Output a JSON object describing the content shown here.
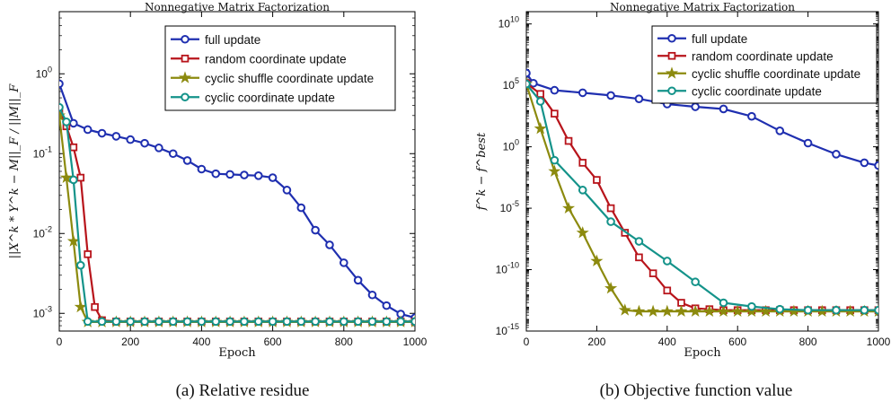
{
  "chart_data": [
    {
      "type": "line",
      "title": "Nonnegative Matrix Factorization",
      "xlabel": "Epoch",
      "ylabel": "||X^k * Y^k − M||_F / ||M||_F",
      "caption": "(a) Relative residue",
      "xlim": [
        0,
        1000
      ],
      "ylim": [
        0.0006,
        6
      ],
      "yscale": "log",
      "xticks": [
        "0",
        "200",
        "400",
        "600",
        "800",
        "1000"
      ],
      "yticks": [
        {
          "value": 1,
          "label": "10^0"
        },
        {
          "value": 0.1,
          "label": "10^-1"
        },
        {
          "value": 0.01,
          "label": "10^-2"
        },
        {
          "value": 0.001,
          "label": "10^-3"
        }
      ],
      "legend_position": "top-right",
      "series": [
        {
          "name": "full update",
          "color": "#1f2fb0",
          "marker": "circle",
          "x": [
            0,
            40,
            80,
            120,
            160,
            200,
            240,
            280,
            320,
            360,
            400,
            440,
            480,
            520,
            560,
            600,
            640,
            680,
            720,
            760,
            800,
            840,
            880,
            920,
            960,
            1000
          ],
          "y": [
            0.75,
            0.24,
            0.2,
            0.18,
            0.165,
            0.15,
            0.135,
            0.118,
            0.1,
            0.082,
            0.064,
            0.056,
            0.055,
            0.054,
            0.053,
            0.05,
            0.035,
            0.021,
            0.011,
            0.0072,
            0.0043,
            0.0026,
            0.0017,
            0.00125,
            0.00098,
            0.00088
          ]
        },
        {
          "name": "random coordinate update",
          "color": "#b8141b",
          "marker": "square",
          "x": [
            0,
            20,
            40,
            60,
            80,
            100,
            120,
            160,
            200,
            240,
            280,
            320,
            360,
            400,
            440,
            480,
            520,
            560,
            600,
            640,
            680,
            720,
            760,
            800,
            840,
            880,
            920,
            960,
            1000
          ],
          "y": [
            0.35,
            0.22,
            0.12,
            0.05,
            0.0055,
            0.0012,
            0.00082,
            0.00079,
            0.00079,
            0.00079,
            0.00079,
            0.00079,
            0.00079,
            0.00079,
            0.00079,
            0.00079,
            0.00079,
            0.00079,
            0.00079,
            0.00079,
            0.00079,
            0.00079,
            0.00079,
            0.00079,
            0.00079,
            0.00079,
            0.00079,
            0.00079,
            0.00079
          ]
        },
        {
          "name": "cyclic shuffle coordinate update",
          "color": "#8c8a0e",
          "marker": "star",
          "x": [
            0,
            20,
            40,
            60,
            80,
            120,
            160,
            200,
            240,
            280,
            320,
            360,
            400,
            440,
            480,
            520,
            560,
            600,
            640,
            680,
            720,
            760,
            800,
            840,
            880,
            920,
            960,
            1000
          ],
          "y": [
            0.3,
            0.05,
            0.008,
            0.0012,
            0.00078,
            0.00078,
            0.00078,
            0.00078,
            0.00078,
            0.00078,
            0.00078,
            0.00078,
            0.00078,
            0.00078,
            0.00078,
            0.00078,
            0.00078,
            0.00078,
            0.00078,
            0.00078,
            0.00078,
            0.00078,
            0.00078,
            0.00078,
            0.00078,
            0.00078,
            0.00078,
            0.00078
          ]
        },
        {
          "name": "cyclic coordinate update",
          "color": "#14938a",
          "marker": "circle",
          "x": [
            0,
            20,
            40,
            60,
            80,
            120,
            160,
            200,
            240,
            280,
            320,
            360,
            400,
            440,
            480,
            520,
            560,
            600,
            640,
            680,
            720,
            760,
            800,
            840,
            880,
            920,
            960,
            1000
          ],
          "y": [
            0.38,
            0.25,
            0.047,
            0.004,
            0.00079,
            0.00079,
            0.00079,
            0.00079,
            0.00079,
            0.00079,
            0.00079,
            0.00079,
            0.00079,
            0.00079,
            0.00079,
            0.00079,
            0.00079,
            0.00079,
            0.00079,
            0.00079,
            0.00079,
            0.00079,
            0.00079,
            0.00079,
            0.00079,
            0.00079,
            0.00079,
            0.00079
          ]
        }
      ]
    },
    {
      "type": "line",
      "title": "Nonnegative Matrix Factorization",
      "xlabel": "Epoch",
      "ylabel": "f^k − f^best",
      "caption": "(b) Objective function value",
      "xlim": [
        0,
        1000
      ],
      "ylim": [
        1e-15,
        100000000000.0
      ],
      "yscale": "log",
      "xticks": [
        "0",
        "200",
        "400",
        "600",
        "800",
        "1000"
      ],
      "yticks": [
        {
          "value": 10000000000.0,
          "label": "10^10"
        },
        {
          "value": 100000.0,
          "label": "10^5"
        },
        {
          "value": 1,
          "label": "10^0"
        },
        {
          "value": 1e-05,
          "label": "10^-5"
        },
        {
          "value": 1e-10,
          "label": "10^-10"
        },
        {
          "value": 1e-15,
          "label": "10^-15"
        }
      ],
      "legend_position": "top-right",
      "series": [
        {
          "name": "full update",
          "color": "#1f2fb0",
          "marker": "circle",
          "x": [
            0,
            20,
            80,
            160,
            240,
            320,
            400,
            480,
            560,
            640,
            720,
            800,
            880,
            960,
            1000
          ],
          "y": [
            1000000.0,
            150000.0,
            40000.0,
            25000.0,
            15000.0,
            8000.0,
            3000.0,
            1800.0,
            1200.0,
            300.0,
            20.0,
            2.0,
            0.25,
            0.05,
            0.03
          ]
        },
        {
          "name": "random coordinate update",
          "color": "#b8141b",
          "marker": "square",
          "x": [
            0,
            40,
            80,
            120,
            160,
            200,
            240,
            280,
            320,
            360,
            400,
            440,
            480,
            520,
            560,
            600,
            640,
            680,
            720,
            760,
            800,
            840,
            880,
            920,
            960,
            1000
          ],
          "y": [
            150000.0,
            20000.0,
            500.0,
            3.0,
            0.05,
            0.002,
            1e-05,
            1e-07,
            1e-09,
            5e-11,
            2e-12,
            2e-13,
            7e-14,
            6e-14,
            5e-14,
            5e-14,
            5e-14,
            5e-14,
            5e-14,
            5e-14,
            5e-14,
            5e-14,
            5e-14,
            5e-14,
            5e-14,
            5e-14
          ]
        },
        {
          "name": "cyclic shuffle coordinate update",
          "color": "#8c8a0e",
          "marker": "star",
          "x": [
            0,
            40,
            80,
            120,
            160,
            200,
            240,
            280,
            320,
            360,
            400,
            440,
            480,
            520,
            560,
            600,
            640,
            680,
            720,
            760,
            800,
            840,
            880,
            920,
            960,
            1000
          ],
          "y": [
            130000.0,
            30.0,
            0.01,
            1e-05,
            1e-07,
            5e-10,
            3e-12,
            5e-14,
            4e-14,
            4e-14,
            4e-14,
            4e-14,
            4e-14,
            4e-14,
            4e-14,
            4e-14,
            4e-14,
            4e-14,
            4e-14,
            4e-14,
            4e-14,
            4e-14,
            4e-14,
            4e-14,
            4e-14,
            4e-14
          ]
        },
        {
          "name": "cyclic coordinate update",
          "color": "#14938a",
          "marker": "circle",
          "x": [
            0,
            40,
            80,
            160,
            240,
            320,
            400,
            480,
            560,
            640,
            720,
            800,
            880,
            960,
            1000
          ],
          "y": [
            130000.0,
            5000.0,
            0.08,
            0.0003,
            8e-07,
            2e-08,
            5e-10,
            1e-11,
            2e-13,
            1e-13,
            6e-14,
            5e-14,
            5e-14,
            5e-14,
            5e-14
          ]
        }
      ]
    }
  ]
}
